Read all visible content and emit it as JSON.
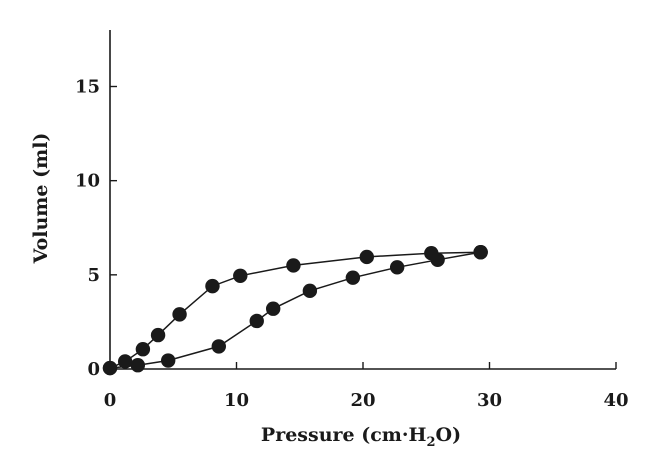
{
  "chart_data": {
    "type": "line",
    "title": "",
    "xlabel": "Pressure (cm·H2O)",
    "xlabel_parts": {
      "main": "Pressure (cm·H",
      "sub": "2",
      "tail": "O)"
    },
    "ylabel": "Volume (ml)",
    "xlim": [
      0,
      40
    ],
    "ylim": [
      0,
      18
    ],
    "xticks": [
      0,
      10,
      20,
      30,
      40
    ],
    "yticks": [
      0,
      5,
      10,
      15
    ],
    "grid": false,
    "marker_color": "#1a1a1a",
    "series": [
      {
        "points": [
          [
            0,
            0.05
          ],
          [
            1.2,
            0.4
          ],
          [
            2.6,
            1.05
          ],
          [
            3.8,
            1.8
          ],
          [
            5.5,
            2.9
          ],
          [
            8.1,
            4.4
          ],
          [
            10.3,
            4.95
          ],
          [
            14.5,
            5.5
          ],
          [
            20.3,
            5.95
          ],
          [
            25.4,
            6.15
          ],
          [
            29.3,
            6.2
          ]
        ]
      },
      {
        "points": [
          [
            0,
            0.05
          ],
          [
            2.2,
            0.2
          ],
          [
            4.6,
            0.45
          ],
          [
            8.6,
            1.2
          ],
          [
            11.6,
            2.55
          ],
          [
            12.9,
            3.2
          ],
          [
            15.8,
            4.15
          ],
          [
            19.2,
            4.85
          ],
          [
            22.7,
            5.4
          ],
          [
            25.9,
            5.8
          ],
          [
            29.3,
            6.2
          ]
        ]
      }
    ]
  }
}
